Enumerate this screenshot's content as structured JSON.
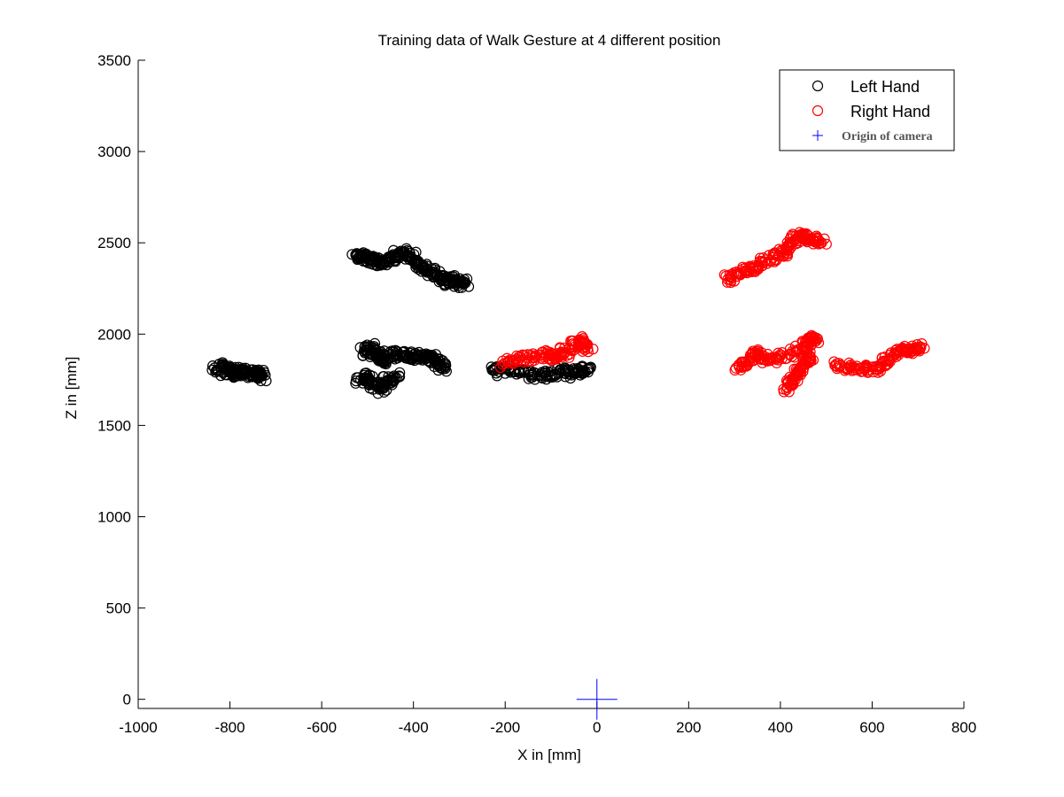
{
  "chart_data": {
    "type": "scatter",
    "title": "Training data of Walk Gesture at 4 different position",
    "xlabel": "X in [mm]",
    "ylabel": "Z in [mm]",
    "xlim": [
      -1000,
      800
    ],
    "ylim": [
      -50,
      3500
    ],
    "xticks": [
      -1000,
      -800,
      -600,
      -400,
      -200,
      0,
      200,
      400,
      600,
      800
    ],
    "yticks": [
      0,
      500,
      1000,
      1500,
      2000,
      2500,
      3000,
      3500
    ],
    "xtick_labels": [
      "-1000",
      "-800",
      "-600",
      "-400",
      "-200",
      "0",
      "200",
      "400",
      "600",
      "800"
    ],
    "ytick_labels": [
      "0",
      "500",
      "1000",
      "1500",
      "2000",
      "2500",
      "3000",
      "3500"
    ],
    "grid": false,
    "legend_position": "top-right",
    "series": [
      {
        "name": "Left Hand",
        "color": "#000000",
        "marker": "circle-open",
        "clusters": [
          {
            "x": [
              -830,
              -815,
              -800,
              -790,
              -780,
              -770,
              -760,
              -745,
              -735,
              -730
            ],
            "y": [
              1800,
              1820,
              1790,
              1805,
              1780,
              1800,
              1790,
              1785,
              1775,
              1770
            ]
          },
          {
            "x": [
              -525,
              -510,
              -495,
              -480,
              -465,
              -450,
              -435,
              -420,
              -405,
              -390,
              -375,
              -360,
              -345,
              -330,
              -315,
              -300,
              -290
            ],
            "y": [
              2430,
              2420,
              2410,
              2400,
              2390,
              2415,
              2430,
              2440,
              2420,
              2380,
              2360,
              2340,
              2310,
              2290,
              2300,
              2280,
              2275
            ]
          },
          {
            "x": [
              -505,
              -495,
              -485,
              -475,
              -465,
              -450,
              -430,
              -410,
              -390,
              -370,
              -355,
              -345,
              -335
            ],
            "y": [
              1910,
              1920,
              1900,
              1880,
              1860,
              1890,
              1885,
              1880,
              1875,
              1870,
              1860,
              1840,
              1810
            ]
          },
          {
            "x": [
              -515,
              -500,
              -485,
              -470,
              -455,
              -440
            ],
            "y": [
              1750,
              1770,
              1720,
              1700,
              1740,
              1760
            ]
          },
          {
            "x": [
              -225,
              -200,
              -170,
              -140,
              -110,
              -80,
              -60,
              -40,
              -20
            ],
            "y": [
              1800,
              1810,
              1790,
              1780,
              1770,
              1790,
              1780,
              1800,
              1805
            ]
          }
        ]
      },
      {
        "name": "Right Hand",
        "color": "#ff0000",
        "marker": "circle-open",
        "clusters": [
          {
            "x": [
              285,
              310,
              335,
              360,
              385,
              405,
              420,
              435,
              450,
              470,
              490
            ],
            "y": [
              2300,
              2330,
              2360,
              2390,
              2420,
              2450,
              2480,
              2520,
              2540,
              2520,
              2500
            ]
          },
          {
            "x": [
              -200,
              -170,
              -140,
              -110,
              -90,
              -70,
              -50,
              -35,
              -20
            ],
            "y": [
              1840,
              1860,
              1870,
              1890,
              1870,
              1900,
              1940,
              1960,
              1920
            ]
          },
          {
            "x": [
              310,
              330,
              345,
              360,
              390,
              420,
              450,
              465,
              475
            ],
            "y": [
              1830,
              1850,
              1900,
              1870,
              1870,
              1890,
              1930,
              1960,
              1980
            ]
          },
          {
            "x": [
              415,
              425,
              435,
              445,
              455,
              465
            ],
            "y": [
              1710,
              1740,
              1780,
              1810,
              1850,
              1880
            ]
          },
          {
            "x": [
              525,
              555,
              585,
              610,
              630,
              650,
              670,
              690,
              705
            ],
            "y": [
              1820,
              1820,
              1810,
              1810,
              1850,
              1890,
              1910,
              1920,
              1930
            ]
          }
        ]
      },
      {
        "name": "Origin of camera",
        "color": "#0000ff",
        "marker": "plus",
        "x": [
          0
        ],
        "y": [
          0
        ]
      }
    ]
  }
}
